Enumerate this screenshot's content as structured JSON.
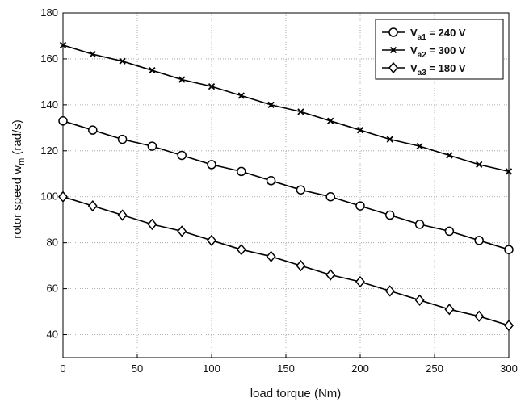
{
  "chart_data": {
    "type": "line",
    "xlabel": "load torque (Nm)",
    "ylabel_main": "rotor speed  w",
    "ylabel_sub": "m",
    "ylabel_units": " (rad/s)",
    "xlim": [
      0,
      300
    ],
    "ylim": [
      30,
      180
    ],
    "xticks": [
      0,
      50,
      100,
      150,
      200,
      250,
      300
    ],
    "yticks": [
      40,
      60,
      80,
      100,
      120,
      140,
      160,
      180
    ],
    "grid": true,
    "legend_position": "top-right",
    "x": [
      0,
      20,
      40,
      60,
      80,
      100,
      120,
      140,
      160,
      180,
      200,
      220,
      240,
      260,
      280,
      300
    ],
    "series": [
      {
        "legend_main": "V",
        "legend_sub": "a1",
        "legend_rest": " = 240 V",
        "marker": "circle",
        "values": [
          133,
          129,
          125,
          122,
          118,
          114,
          111,
          107,
          103,
          100,
          96,
          92,
          88,
          85,
          81,
          77
        ]
      },
      {
        "legend_main": "V",
        "legend_sub": "a2",
        "legend_rest": " = 300 V",
        "marker": "x",
        "values": [
          166,
          162,
          159,
          155,
          151,
          148,
          144,
          140,
          137,
          133,
          129,
          125,
          122,
          118,
          114,
          111
        ]
      },
      {
        "legend_main": "V",
        "legend_sub": "a3",
        "legend_rest": " = 180 V",
        "marker": "diamond",
        "values": [
          100,
          96,
          92,
          88,
          85,
          81,
          77,
          74,
          70,
          66,
          63,
          59,
          55,
          51,
          48,
          44
        ]
      }
    ]
  }
}
